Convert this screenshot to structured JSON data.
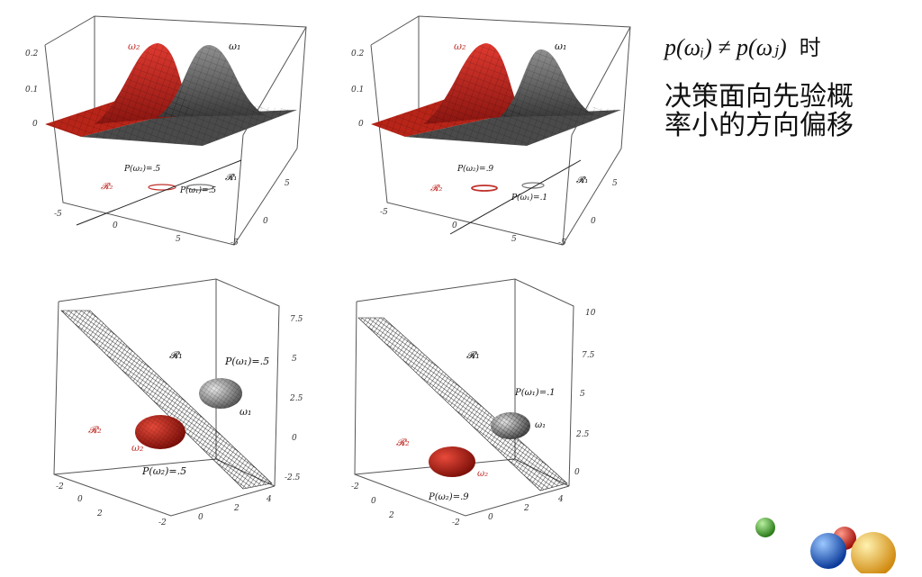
{
  "headline": {
    "formula_left": "p(ωᵢ) ≠ p(ωⱼ)",
    "formula_suffix": "时",
    "line1": "决策面向先验概",
    "line2": "率小的方向偏移"
  },
  "panels": [
    {
      "id": "top-left",
      "type": "3d-gaussian-surfaces",
      "z_ticks": [
        "0.2",
        "0.1",
        "0"
      ],
      "x_ticks": [
        "-5",
        "0",
        "5"
      ],
      "y_ticks": [
        "5",
        "0",
        "-5"
      ],
      "curve_labels": [
        "ω₂",
        "ω₁"
      ],
      "region_labels": [
        "𝓡₂",
        "𝓡₁"
      ],
      "prior_labels": [
        "P(ω₂)=.5",
        "P(ω₁)=.5"
      ]
    },
    {
      "id": "top-right",
      "type": "3d-gaussian-surfaces",
      "z_ticks": [
        "0.2",
        "0.1",
        "0"
      ],
      "x_ticks": [
        "-5",
        "0",
        "5"
      ],
      "y_ticks": [
        "5",
        "0",
        "-5"
      ],
      "curve_labels": [
        "ω₂",
        "ω₁"
      ],
      "region_labels": [
        "𝓡₂",
        "𝓡₁"
      ],
      "prior_labels": [
        "P(ω₂)=.9",
        "P(ω₁)=.1"
      ]
    },
    {
      "id": "bottom-left",
      "type": "3d-ellipsoids-plane",
      "z_ticks": [
        "7.5",
        "5",
        "2.5",
        "0",
        "-2.5"
      ],
      "x_ticks": [
        "-2",
        "0",
        "2",
        "4"
      ],
      "y_ticks": [
        "-2",
        "0",
        "2"
      ],
      "curve_labels": [
        "ω₁",
        "ω₂"
      ],
      "region_labels": [
        "𝓡₁",
        "𝓡₂"
      ],
      "prior_labels": [
        "P(ω₁)=.5",
        "P(ω₂)=.5"
      ]
    },
    {
      "id": "bottom-right",
      "type": "3d-ellipsoids-plane",
      "z_ticks": [
        "10",
        "7.5",
        "5",
        "2.5",
        "0"
      ],
      "x_ticks": [
        "-2",
        "0",
        "2",
        "4"
      ],
      "y_ticks": [
        "-2",
        "0",
        "2"
      ],
      "curve_labels": [
        "ω₁",
        "ω₂"
      ],
      "region_labels": [
        "𝓡₁",
        "𝓡₂"
      ],
      "prior_labels": [
        "P(ω₁)=.1",
        "P(ω₂)=.9"
      ]
    }
  ],
  "colors": {
    "class2": "#c8281f",
    "class1": "#6e6e6e",
    "plane": "#2a2a2a",
    "ball_green": "#3a9a2a",
    "ball_blue": "#1a5fc8",
    "ball_red": "#d0241c",
    "ball_yellow": "#f0b828"
  }
}
